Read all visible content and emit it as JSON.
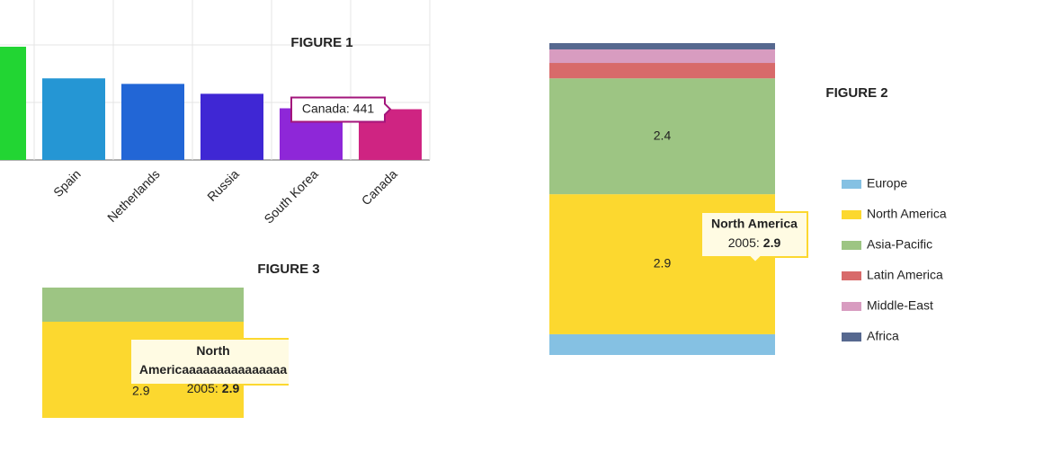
{
  "chart_data": [
    {
      "type": "bar",
      "title": "FIGURE 1",
      "categories": [
        null,
        "Spain",
        "Netherlands",
        "Russia",
        "South Korea",
        "Canada"
      ],
      "values": [
        984,
        709,
        661,
        575,
        449,
        441
      ],
      "colors": [
        "#22d533",
        "#2596d4",
        "#2266d6",
        "#3f27d4",
        "#8e27d8",
        "#cf2482"
      ],
      "ylim": [
        0,
        1390
      ],
      "yticks": [
        0,
        500,
        1000
      ],
      "grid": true,
      "tooltip": {
        "label": "Canada:",
        "color": "#a3157b"
      }
    },
    {
      "type": "stacked_bar",
      "title": "FIGURE 2",
      "legend": "right",
      "series": [
        {
          "name": "Europe",
          "color": "#85c1e3",
          "values": [
            0.43
          ]
        },
        {
          "name": "North America",
          "color": "#fcd82f",
          "values": [
            2.9
          ],
          "labels": true
        },
        {
          "name": "Asia-Pacific",
          "color": "#9dc583",
          "values": [
            2.4
          ],
          "labels": true
        },
        {
          "name": "Latin America",
          "color": "#d86a6a",
          "values": [
            0.32
          ]
        },
        {
          "name": "Middle-East",
          "color": "#d89cc0",
          "values": [
            0.28
          ]
        },
        {
          "name": "Africa",
          "color": "#56688f",
          "values": [
            0.13
          ]
        }
      ],
      "ylim": [
        0,
        6.46
      ],
      "tooltip": {
        "title": "North America",
        "label": "2005:",
        "color": "#fcd82f"
      }
    },
    {
      "type": "stacked_bar",
      "title": "FIGURE 3",
      "series": [
        {
          "color": "#fcd82f",
          "values": [
            2.9
          ],
          "labels": true
        },
        {
          "color": "#9dc583",
          "values": [
            1.03
          ]
        }
      ],
      "ylim": [
        0,
        3.93
      ],
      "tooltip": {
        "title": "North Americaaaaaaaaaaaaaaa",
        "label": "2005:",
        "color": "#fcd82f"
      }
    }
  ]
}
